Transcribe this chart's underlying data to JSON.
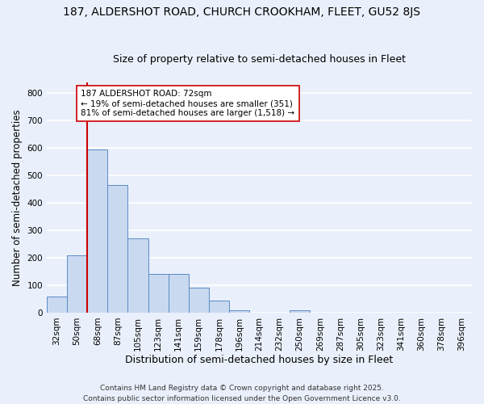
{
  "title1": "187, ALDERSHOT ROAD, CHURCH CROOKHAM, FLEET, GU52 8JS",
  "title2": "Size of property relative to semi-detached houses in Fleet",
  "xlabel": "Distribution of semi-detached houses by size in Fleet",
  "ylabel": "Number of semi-detached properties",
  "categories": [
    "32sqm",
    "50sqm",
    "68sqm",
    "87sqm",
    "105sqm",
    "123sqm",
    "141sqm",
    "159sqm",
    "178sqm",
    "196sqm",
    "214sqm",
    "232sqm",
    "250sqm",
    "269sqm",
    "287sqm",
    "305sqm",
    "323sqm",
    "341sqm",
    "360sqm",
    "378sqm",
    "396sqm"
  ],
  "values": [
    60,
    210,
    595,
    465,
    270,
    140,
    140,
    90,
    45,
    10,
    0,
    0,
    10,
    0,
    0,
    0,
    0,
    0,
    0,
    0,
    0
  ],
  "bar_color": "#c9d9f0",
  "bar_edge_color": "#5a8ac6",
  "vline_color": "#cc0000",
  "annotation_text": "187 ALDERSHOT ROAD: 72sqm\n← 19% of semi-detached houses are smaller (351)\n81% of semi-detached houses are larger (1,518) →",
  "annotation_box_color": "#ffffff",
  "annotation_box_edge": "#cc0000",
  "ylim": [
    0,
    840
  ],
  "yticks": [
    0,
    100,
    200,
    300,
    400,
    500,
    600,
    700,
    800
  ],
  "bg_color": "#eaf0fb",
  "grid_color": "#ffffff",
  "footer": "Contains HM Land Registry data © Crown copyright and database right 2025.\nContains public sector information licensed under the Open Government Licence v3.0.",
  "title1_fontsize": 10,
  "title2_fontsize": 9,
  "xlabel_fontsize": 9,
  "ylabel_fontsize": 8.5,
  "tick_fontsize": 7.5,
  "footer_fontsize": 6.5
}
